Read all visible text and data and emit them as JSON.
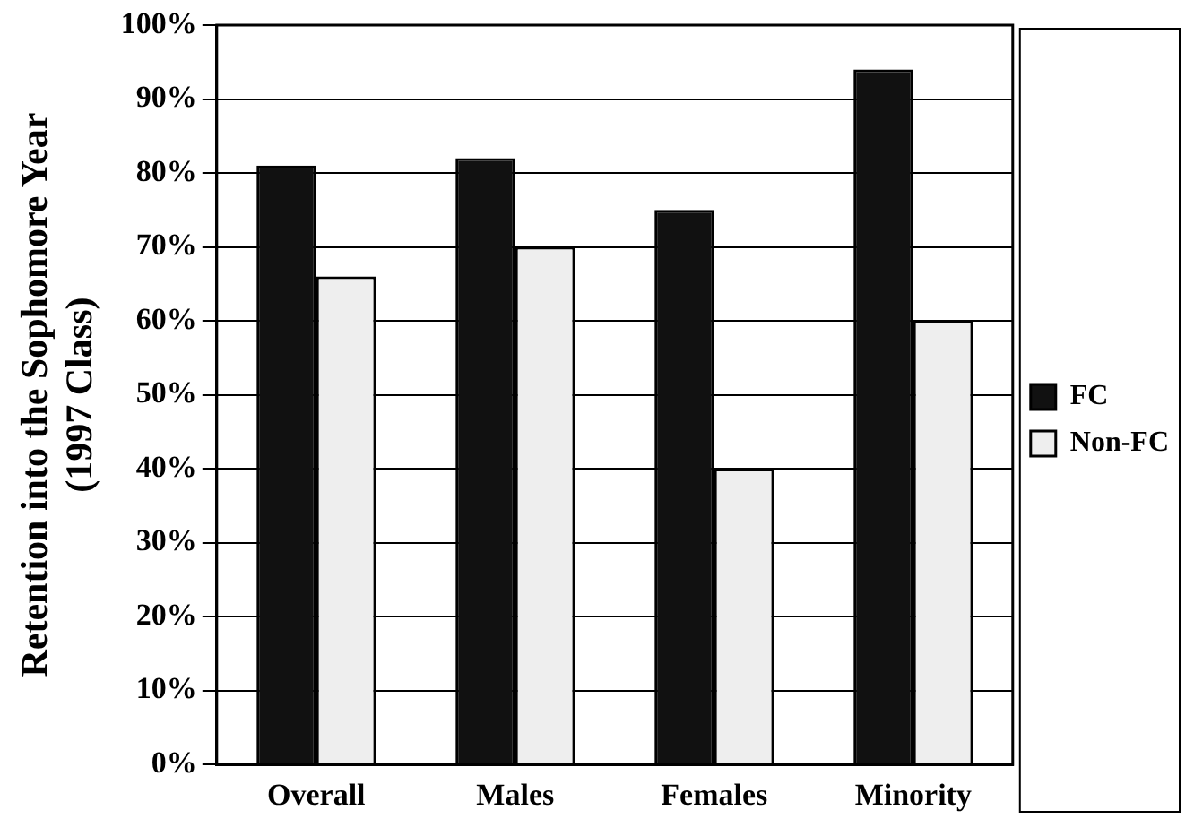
{
  "chart_data": {
    "type": "bar",
    "ylabel": "Retention into the Sophomore Year (1997 Class)",
    "categories": [
      "Overall",
      "Males",
      "Females",
      "Minority"
    ],
    "series": [
      {
        "name": "FC",
        "color": "#111111",
        "values": [
          81,
          82,
          75,
          94
        ]
      },
      {
        "name": "Non-FC",
        "color": "#eeeeee",
        "values": [
          66,
          70,
          40,
          60
        ]
      }
    ],
    "ylim": [
      0,
      100
    ],
    "yticks": [
      {
        "value": 0,
        "label": "0%"
      },
      {
        "value": 10,
        "label": "10%"
      },
      {
        "value": 20,
        "label": "20%"
      },
      {
        "value": 30,
        "label": "30%"
      },
      {
        "value": 40,
        "label": "40%"
      },
      {
        "value": 50,
        "label": "50%"
      },
      {
        "value": 60,
        "label": "60%"
      },
      {
        "value": 70,
        "label": "70%"
      },
      {
        "value": 80,
        "label": "80%"
      },
      {
        "value": 90,
        "label": "90%"
      },
      {
        "value": 100,
        "label": "100%"
      }
    ],
    "grid": "y",
    "legend": "right"
  }
}
